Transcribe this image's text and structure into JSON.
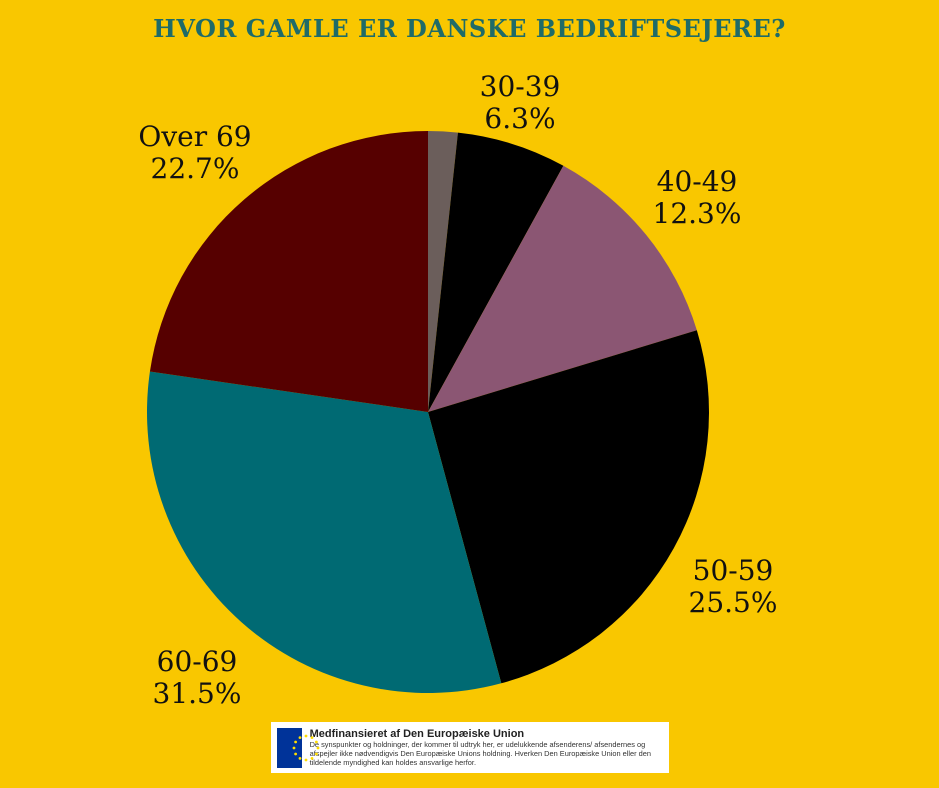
{
  "chart_data": {
    "type": "pie",
    "title": "HVOR GAMLE ER DANSKE BEDRIFTSEJERE?",
    "start": "top",
    "direction": "clockwise",
    "slices": [
      {
        "label": "",
        "value": 1.7,
        "value_label": "",
        "color": "#6b5e5b"
      },
      {
        "label": "30-39",
        "value": 6.3,
        "value_label": "6.3%",
        "color": "#000000"
      },
      {
        "label": "40-49",
        "value": 12.3,
        "value_label": "12.3%",
        "color": "#8b5673"
      },
      {
        "label": "50-59",
        "value": 25.5,
        "value_label": "25.5%",
        "color": "#000000"
      },
      {
        "label": "60-69",
        "value": 31.5,
        "value_label": "31.5%",
        "color": "#006a73"
      },
      {
        "label": "Over 69",
        "value": 22.7,
        "value_label": "22.7%",
        "color": "#560000"
      }
    ]
  },
  "colors": {
    "background": "#f9c700",
    "title": "#1f6b68"
  },
  "eu_notice": {
    "icon": "eu-flag-icon",
    "title": "Medfinansieret af Den Europæiske Union",
    "body": "De synspunkter og holdninger, der kommer til udtryk her, er udelukkende afsenderens/ afsendernes og afspejler ikke nødvendigvis Den Europæiske Unions holdning. Hverken Den Europæiske Union eller den tildelende myndighed kan holdes ansvarlige herfor."
  }
}
